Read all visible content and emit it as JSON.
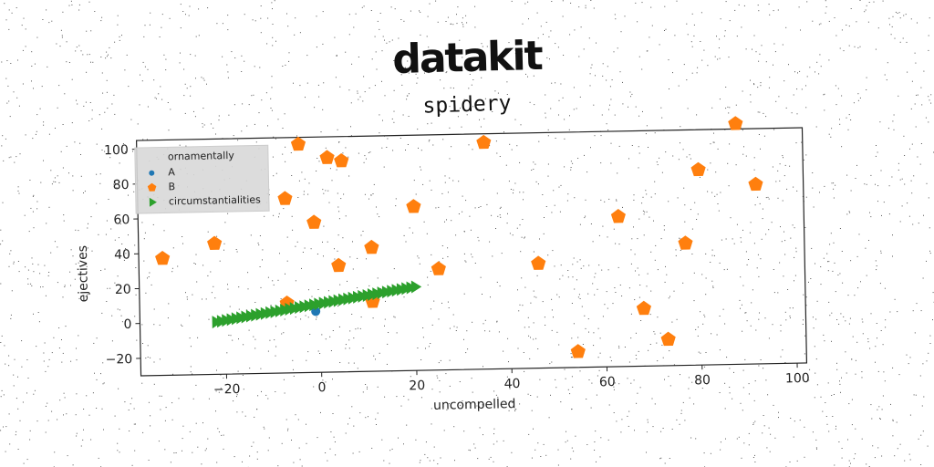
{
  "brand": "datakit",
  "chart_data": {
    "type": "scatter",
    "title": "spidery",
    "xlabel": "uncompelled",
    "ylabel": "ejectives",
    "xlim": [
      -38,
      102
    ],
    "ylim": [
      -30,
      105
    ],
    "xticks": [
      -20,
      0,
      20,
      40,
      60,
      80,
      100
    ],
    "yticks": [
      -20,
      0,
      20,
      40,
      60,
      80,
      100
    ],
    "grid": false,
    "legend": {
      "title": "ornamentally",
      "placement": "top-left"
    },
    "colors": {
      "A": "#1f77b4",
      "B": "#ff7f0e",
      "circumstantialities": "#2ca02c"
    },
    "series": [
      {
        "name": "A",
        "marker": "circle",
        "points": [
          [
            -1,
            5
          ]
        ]
      },
      {
        "name": "B",
        "marker": "pentagon",
        "points": [
          [
            -33,
            37
          ],
          [
            -22,
            45
          ],
          [
            -7,
            10
          ],
          [
            -7,
            70
          ],
          [
            -4,
            101
          ],
          [
            -1,
            56
          ],
          [
            2,
            93
          ],
          [
            4,
            31
          ],
          [
            5,
            91
          ],
          [
            11,
            41
          ],
          [
            11,
            10
          ],
          [
            20,
            64
          ],
          [
            25,
            28
          ],
          [
            35,
            100
          ],
          [
            46,
            30
          ],
          [
            54,
            -21
          ],
          [
            63,
            56
          ],
          [
            68,
            3
          ],
          [
            73,
            -15
          ],
          [
            77,
            40
          ],
          [
            80,
            82
          ],
          [
            88,
            108
          ],
          [
            92,
            73
          ]
        ]
      },
      {
        "name": "circumstantialities",
        "marker": "triangle-right",
        "x_start": -22,
        "x_end": 20,
        "y_start": 0,
        "y_end": 18,
        "count": 42
      }
    ]
  }
}
